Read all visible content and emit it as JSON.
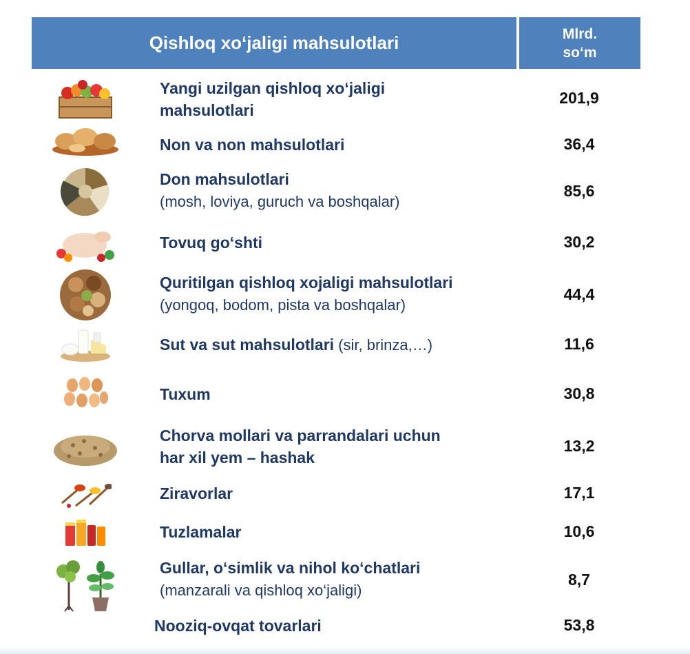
{
  "header": {
    "title": "Qishloq xo‘jaligi mahsulotlari",
    "unit_line1": "Mlrd.",
    "unit_line2": "so‘m"
  },
  "rows": [
    {
      "icon": "fruit-crate-icon",
      "label_line1": "Yangi uzilgan qishloq xo‘jaligi",
      "label_line2": "mahsulotlari",
      "value": "201,9"
    },
    {
      "icon": "bread-icon",
      "label_line1": "Non va non mahsulotlari",
      "value": "36,4"
    },
    {
      "icon": "grain-icon",
      "label_line1": "Don mahsulotlari",
      "label_line2": "(mosh, loviya, guruch va boshqalar)",
      "value": "85,6"
    },
    {
      "icon": "chicken-icon",
      "label_line1": "Tovuq go‘shti",
      "value": "30,2"
    },
    {
      "icon": "nuts-icon",
      "label_line1": "Quritilgan qishloq xojaligi mahsulotlari",
      "label_line2": "(yongoq, bodom, pista va boshqalar)",
      "value": "44,4"
    },
    {
      "icon": "dairy-icon",
      "label_line1": "Sut va sut mahsulotlari",
      "label_suffix": " (sir, brinza,…)",
      "value": "11,6"
    },
    {
      "icon": "eggs-icon",
      "label_line1": "Tuxum",
      "value": "30,8"
    },
    {
      "icon": "feed-pellets-icon",
      "label_line1": "Chorva mollari va parrandalari uchun",
      "label_line2": "har xil yem – hashak",
      "value": "13,2"
    },
    {
      "icon": "spices-icon",
      "label_line1": "Ziravorlar",
      "value": "17,1"
    },
    {
      "icon": "pickle-jars-icon",
      "label_line1": "Tuzlamalar",
      "value": "10,6"
    },
    {
      "icon": "seedlings-icon",
      "label_line1": "Gullar, o‘simlik va nihol ko‘chatlari",
      "label_line2": "(manzarali va qishloq xo‘jaligi)",
      "value": "8,7"
    },
    {
      "label_line1": "Nooziq-ovqat tovarlari",
      "value": "53,8"
    }
  ]
}
